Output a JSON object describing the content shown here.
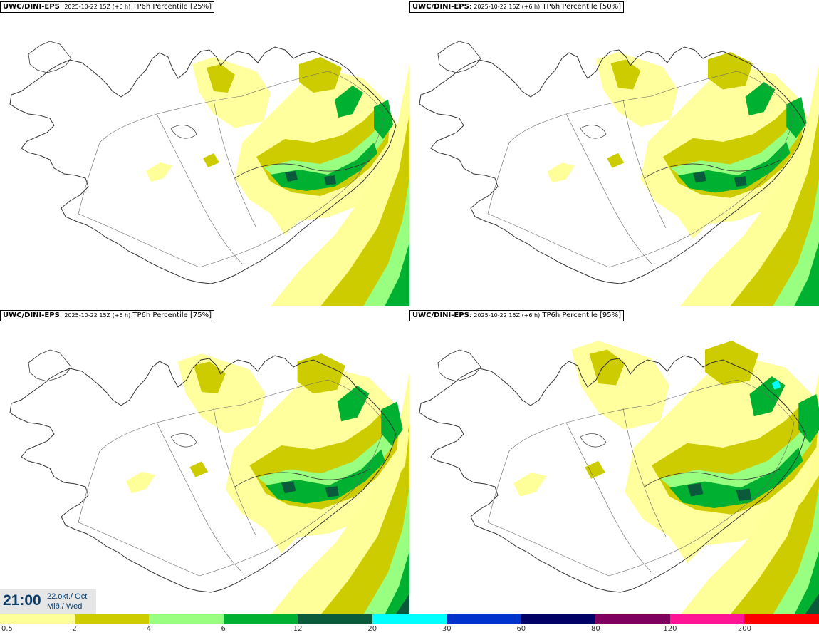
{
  "panels": [
    {
      "model": "UWC/DINI-EPS",
      "run": "2025-10-22 15Z (+6 h)",
      "field": "TP6h Percentile [25%]",
      "percentile": 25
    },
    {
      "model": "UWC/DINI-EPS",
      "run": "2025-10-22 15Z (+6 h)",
      "field": "TP6h Percentile [50%]",
      "percentile": 50
    },
    {
      "model": "UWC/DINI-EPS",
      "run": "2025-10-22 15Z (+6 h)",
      "field": "TP6h Percentile [75%]",
      "percentile": 75
    },
    {
      "model": "UWC/DINI-EPS",
      "run": "2025-10-22 15Z (+6 h)",
      "field": "TP6h Percentile [95%]",
      "percentile": 95
    }
  ],
  "valid_time": {
    "time": "21:00",
    "date_line1": "22.okt./ Oct",
    "date_line2": "Mið./ Wed"
  },
  "colorbar": {
    "labels": [
      "0.5",
      "2",
      "4",
      "6",
      "12",
      "20",
      "30",
      "60",
      "80",
      "120",
      "200"
    ],
    "colors": [
      "#ffff99",
      "#cccc00",
      "#99ff80",
      "#00b030",
      "#0a5a3c",
      "#00ffff",
      "#0033cc",
      "#000066",
      "#800060",
      "#ff1493",
      "#ff0000"
    ]
  },
  "map_colors": {
    "land_outline": "#333333",
    "road": "#666666"
  }
}
